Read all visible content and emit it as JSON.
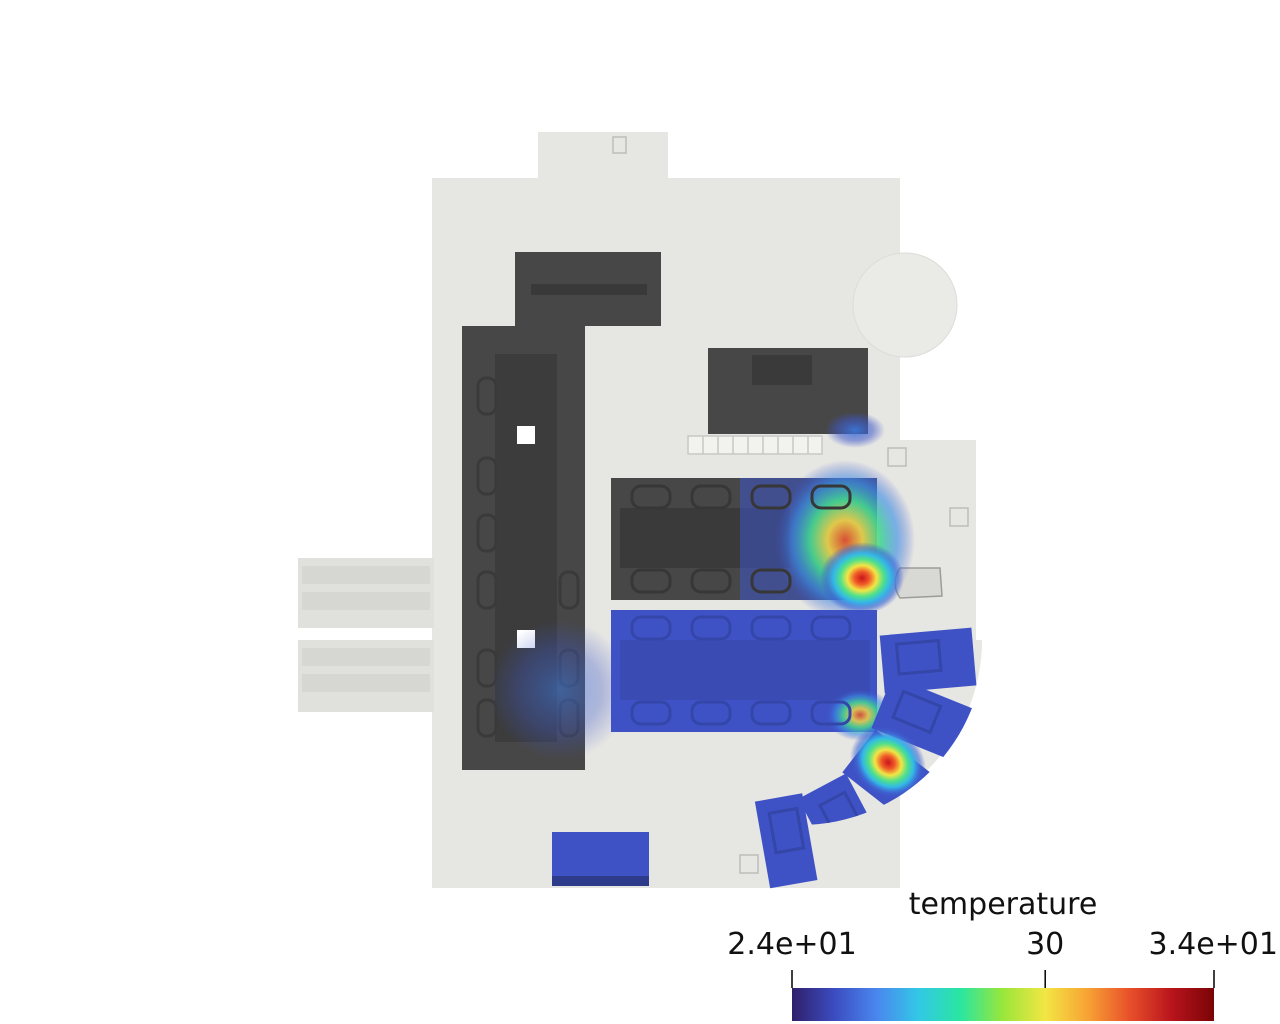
{
  "colorbar": {
    "title": "temperature",
    "min_label": "2.4e+01",
    "mid_label": "30",
    "max_label": "3.4e+01",
    "min_value": 24,
    "mid_value": 30,
    "max_value": 34,
    "colormap": [
      "#2f1f6b",
      "#3b4cc0",
      "#4a86ee",
      "#32c8e6",
      "#2ae6a0",
      "#9ae63a",
      "#f2e644",
      "#f7a334",
      "#e8502a",
      "#b8141c",
      "#7a0406"
    ]
  },
  "colors": {
    "floor": "#e6e6e3",
    "furniture": "#474747",
    "furniture_dark": "#3a3a3a",
    "cold": "#3e52c6",
    "hot": "#c8151a"
  }
}
